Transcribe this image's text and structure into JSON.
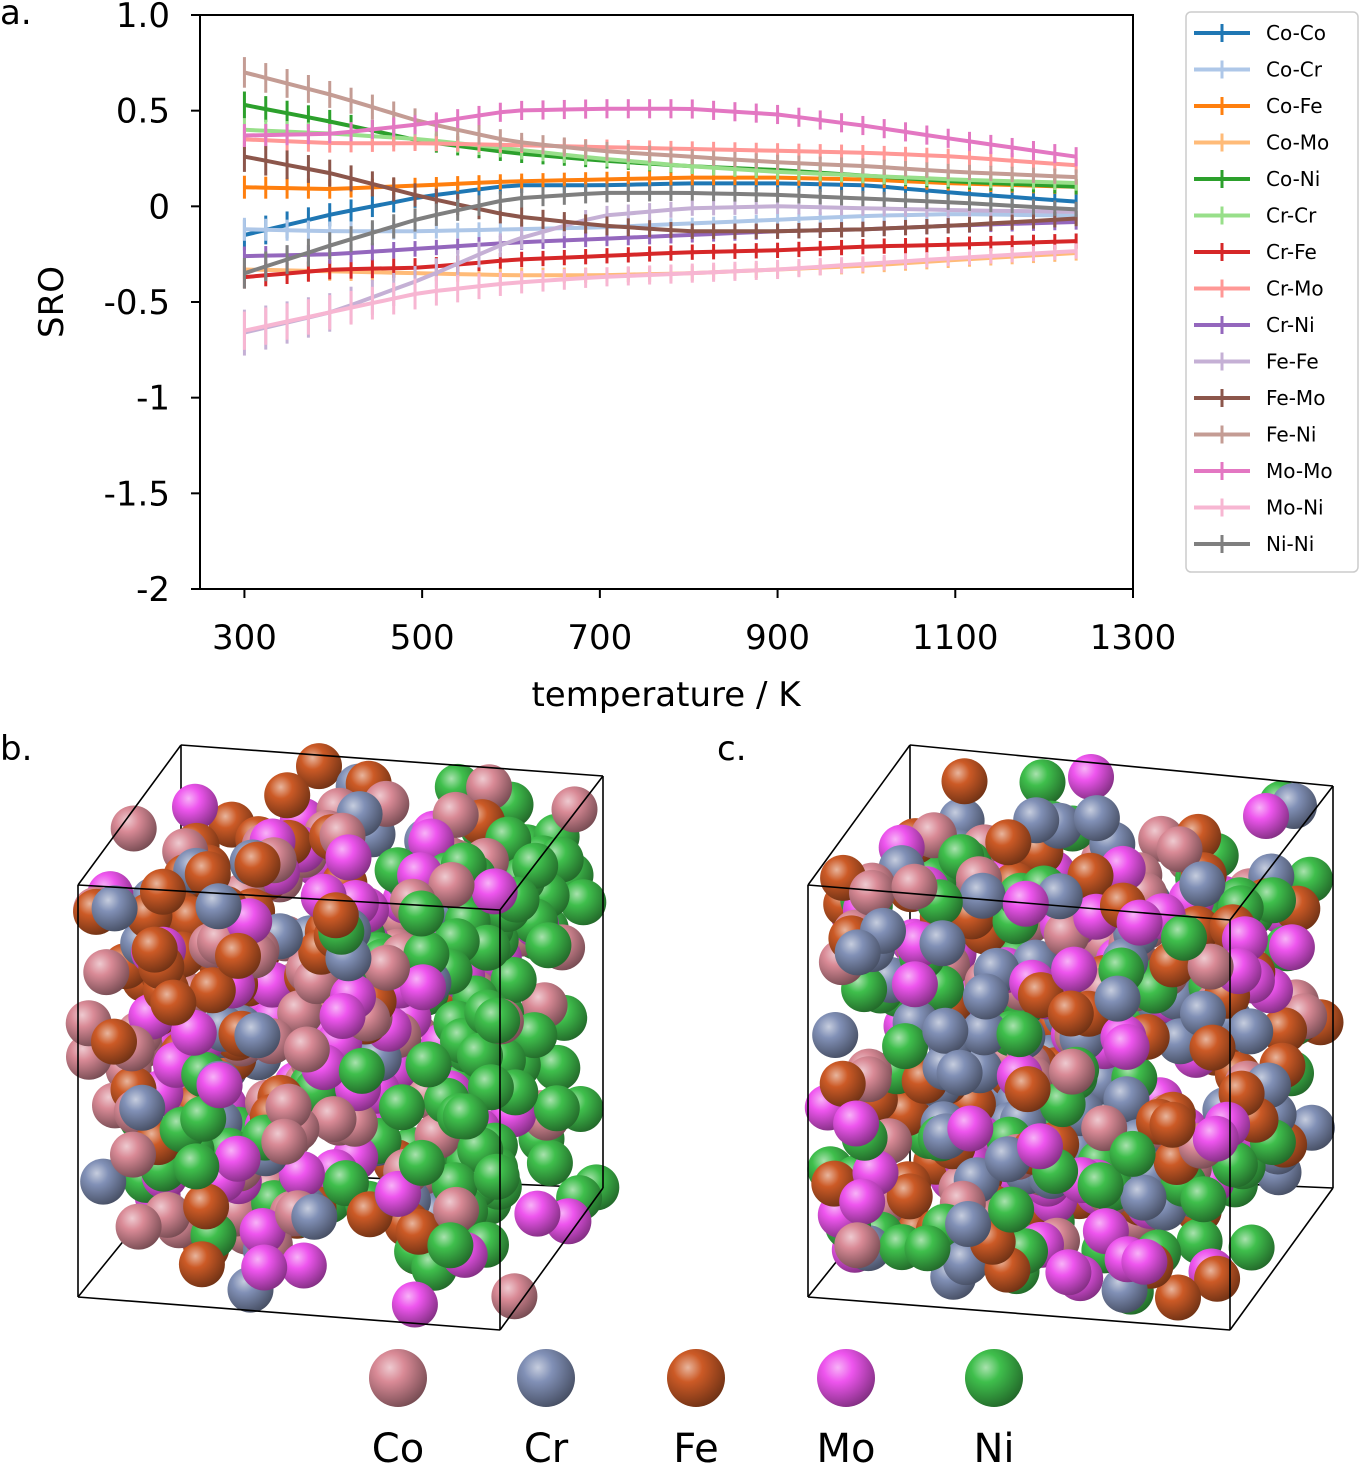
{
  "panel_labels": [
    "a.",
    "b.",
    "c."
  ],
  "atom_legend": [
    {
      "label": "Co",
      "color": "#d98a96"
    },
    {
      "label": "Cr",
      "color": "#8190b6"
    },
    {
      "label": "Fe",
      "color": "#cc5a26"
    },
    {
      "label": "Mo",
      "color": "#ee55ee"
    },
    {
      "label": "Ni",
      "color": "#3fbf4c"
    }
  ],
  "chart_data": {
    "type": "line",
    "xlabel": "temperature / K",
    "ylabel": "SRO",
    "xlim": [
      250,
      1300
    ],
    "ylim": [
      -2,
      1
    ],
    "x_ticks": [
      300,
      500,
      700,
      900,
      1100,
      1300
    ],
    "x_tick_labels": [
      "300",
      "500",
      "700",
      "900",
      "1100",
      "1300"
    ],
    "y_ticks": [
      1.0,
      0.5,
      0,
      -0.5,
      -1,
      -1.5,
      -2
    ],
    "y_tick_labels": [
      "1.0",
      "0.5",
      "0",
      "-0.5",
      "-1",
      "-1.5",
      "-2"
    ],
    "legend_position": "right",
    "grid": false,
    "error_bars": true,
    "x": [
      300,
      400,
      500,
      600,
      700,
      800,
      900,
      1000,
      1100,
      1250
    ],
    "series": [
      {
        "name": "Co-Co",
        "color": "#1f77b4",
        "values": [
          -0.15,
          -0.04,
          0.05,
          0.11,
          0.11,
          0.12,
          0.12,
          0.11,
          0.07,
          0.02
        ],
        "err": [
          0.08,
          0.06,
          0.05,
          0.04,
          0.04,
          0.04,
          0.04,
          0.04,
          0.04,
          0.04
        ]
      },
      {
        "name": "Co-Cr",
        "color": "#aec7e8",
        "values": [
          -0.12,
          -0.13,
          -0.13,
          -0.12,
          -0.11,
          -0.09,
          -0.07,
          -0.05,
          -0.04,
          -0.05
        ],
        "err": [
          0.06,
          0.05,
          0.04,
          0.04,
          0.04,
          0.03,
          0.03,
          0.03,
          0.03,
          0.03
        ]
      },
      {
        "name": "Co-Fe",
        "color": "#ff7f0e",
        "values": [
          0.1,
          0.09,
          0.11,
          0.13,
          0.14,
          0.15,
          0.15,
          0.14,
          0.12,
          0.1
        ],
        "err": [
          0.06,
          0.05,
          0.04,
          0.04,
          0.04,
          0.04,
          0.04,
          0.04,
          0.04,
          0.04
        ]
      },
      {
        "name": "Co-Mo",
        "color": "#ffbb78",
        "values": [
          -0.33,
          -0.34,
          -0.35,
          -0.36,
          -0.36,
          -0.35,
          -0.33,
          -0.31,
          -0.28,
          -0.24
        ],
        "err": [
          0.05,
          0.05,
          0.04,
          0.04,
          0.04,
          0.04,
          0.04,
          0.04,
          0.04,
          0.04
        ]
      },
      {
        "name": "Co-Ni",
        "color": "#2ca02c",
        "values": [
          0.53,
          0.44,
          0.34,
          0.28,
          0.24,
          0.21,
          0.19,
          0.16,
          0.13,
          0.1
        ],
        "err": [
          0.07,
          0.06,
          0.05,
          0.05,
          0.04,
          0.04,
          0.04,
          0.04,
          0.04,
          0.04
        ]
      },
      {
        "name": "Cr-Cr",
        "color": "#98df8a",
        "values": [
          0.4,
          0.38,
          0.35,
          0.3,
          0.25,
          0.21,
          0.18,
          0.16,
          0.14,
          0.12
        ],
        "err": [
          0.06,
          0.05,
          0.05,
          0.05,
          0.04,
          0.04,
          0.04,
          0.04,
          0.04,
          0.04
        ]
      },
      {
        "name": "Cr-Fe",
        "color": "#d62728",
        "values": [
          -0.37,
          -0.33,
          -0.32,
          -0.28,
          -0.26,
          -0.24,
          -0.23,
          -0.21,
          -0.2,
          -0.18
        ],
        "err": [
          0.06,
          0.05,
          0.05,
          0.04,
          0.04,
          0.04,
          0.04,
          0.04,
          0.04,
          0.04
        ]
      },
      {
        "name": "Cr-Mo",
        "color": "#ff9896",
        "values": [
          0.35,
          0.33,
          0.33,
          0.32,
          0.31,
          0.3,
          0.29,
          0.28,
          0.26,
          0.21
        ],
        "err": [
          0.05,
          0.05,
          0.04,
          0.04,
          0.04,
          0.04,
          0.04,
          0.04,
          0.04,
          0.04
        ]
      },
      {
        "name": "Cr-Ni",
        "color": "#9467bd",
        "values": [
          -0.26,
          -0.25,
          -0.22,
          -0.19,
          -0.17,
          -0.15,
          -0.13,
          -0.12,
          -0.1,
          -0.08
        ],
        "err": [
          0.05,
          0.05,
          0.04,
          0.04,
          0.04,
          0.04,
          0.04,
          0.04,
          0.04,
          0.04
        ]
      },
      {
        "name": "Fe-Fe",
        "color": "#c5b0d5",
        "values": [
          -0.66,
          -0.55,
          -0.38,
          -0.18,
          -0.05,
          -0.01,
          0.0,
          -0.01,
          -0.02,
          -0.03
        ],
        "err": [
          0.12,
          0.1,
          0.08,
          0.06,
          0.05,
          0.04,
          0.04,
          0.04,
          0.04,
          0.04
        ]
      },
      {
        "name": "Fe-Mo",
        "color": "#8c564b",
        "values": [
          0.26,
          0.17,
          0.05,
          -0.05,
          -0.1,
          -0.13,
          -0.13,
          -0.12,
          -0.1,
          -0.06
        ],
        "err": [
          0.08,
          0.07,
          0.06,
          0.05,
          0.05,
          0.04,
          0.04,
          0.04,
          0.04,
          0.04
        ]
      },
      {
        "name": "Fe-Ni",
        "color": "#c49c94",
        "values": [
          0.7,
          0.58,
          0.44,
          0.34,
          0.29,
          0.26,
          0.23,
          0.21,
          0.18,
          0.15
        ],
        "err": [
          0.08,
          0.07,
          0.06,
          0.05,
          0.05,
          0.04,
          0.04,
          0.04,
          0.04,
          0.04
        ]
      },
      {
        "name": "Mo-Mo",
        "color": "#e377c2",
        "values": [
          0.37,
          0.38,
          0.43,
          0.5,
          0.51,
          0.51,
          0.48,
          0.42,
          0.35,
          0.25
        ],
        "err": [
          0.06,
          0.05,
          0.05,
          0.05,
          0.05,
          0.05,
          0.05,
          0.05,
          0.05,
          0.05
        ]
      },
      {
        "name": "Mo-Ni",
        "color": "#f7b6d2",
        "values": [
          -0.65,
          -0.55,
          -0.45,
          -0.4,
          -0.37,
          -0.35,
          -0.33,
          -0.3,
          -0.27,
          -0.23
        ],
        "err": [
          0.1,
          0.09,
          0.08,
          0.06,
          0.05,
          0.05,
          0.05,
          0.04,
          0.04,
          0.04
        ]
      },
      {
        "name": "Ni-Ni",
        "color": "#7f7f7f",
        "values": [
          -0.35,
          -0.2,
          -0.06,
          0.04,
          0.07,
          0.07,
          0.06,
          0.04,
          0.02,
          -0.02
        ],
        "err": [
          0.08,
          0.07,
          0.06,
          0.05,
          0.05,
          0.04,
          0.04,
          0.04,
          0.04,
          0.04
        ]
      }
    ]
  }
}
